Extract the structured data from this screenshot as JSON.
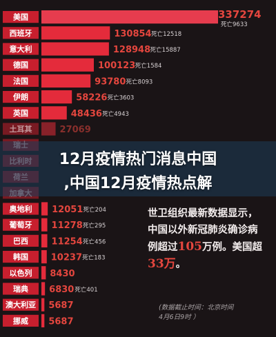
{
  "headline": {
    "line1": "12月疫情热门消息中国",
    "line2": ",中国12月疫情热点解"
  },
  "summary": {
    "part1": "世卫组织最新数据显示，中国以外新冠肺炎确诊病例超过",
    "highlight1": "105",
    "part2": "万例。美国超",
    "highlight2": "33万",
    "part3": "。"
  },
  "source": {
    "line1": "(数据截止时间：北京时间",
    "line2": "4月6日9时 ）"
  },
  "colors": {
    "bar_top": "#e63c4e",
    "bar": "#e42b3b",
    "bar_faded": "#7a2a33",
    "value_text": "#e4463e",
    "label_bg": "#c71f2e"
  },
  "chart_data": {
    "type": "bar",
    "orientation": "horizontal",
    "death_prefix": "死亡",
    "categories": [
      "美国",
      "西班牙",
      "意大利",
      "德国",
      "法国",
      "伊朗",
      "英国",
      "土耳其",
      "瑞士",
      "比利时",
      "荷兰",
      "加拿大",
      "奥地利",
      "葡萄牙",
      "巴西",
      "韩国",
      "以色列",
      "瑞典",
      "澳大利亚",
      "挪威"
    ],
    "cases": [
      337274,
      130854,
      128948,
      100123,
      93780,
      58226,
      48436,
      27069,
      null,
      null,
      null,
      null,
      12051,
      11278,
      11254,
      10237,
      8430,
      6830,
      5687,
      5687
    ],
    "deaths": [
      9633,
      12518,
      15887,
      1584,
      8093,
      3603,
      4943,
      null,
      null,
      null,
      null,
      null,
      204,
      295,
      456,
      183,
      null,
      401,
      null,
      null
    ],
    "visible": [
      true,
      true,
      true,
      true,
      true,
      true,
      true,
      true,
      false,
      false,
      false,
      false,
      true,
      true,
      true,
      true,
      true,
      true,
      true,
      true
    ]
  }
}
